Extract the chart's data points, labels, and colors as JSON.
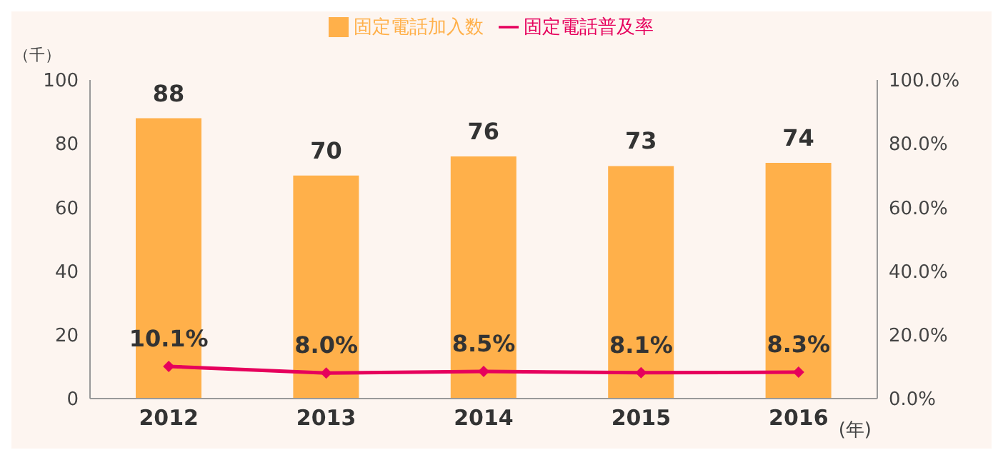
{
  "chart_data": {
    "type": "bar",
    "categories": [
      "2012",
      "2013",
      "2014",
      "2015",
      "2016"
    ],
    "xlabel": "(年)",
    "ylabel": "（千）",
    "ylim": [
      0,
      100
    ],
    "yticks": [
      0,
      20,
      40,
      60,
      80,
      100
    ],
    "y2lim": [
      0,
      100
    ],
    "y2ticks": [
      {
        "value": 0,
        "label": "0.0%"
      },
      {
        "value": 20,
        "label": "20.0%"
      },
      {
        "value": 40,
        "label": "40.0%"
      },
      {
        "value": 60,
        "label": "60.0%"
      },
      {
        "value": 80,
        "label": "80.0%"
      },
      {
        "value": 100,
        "label": "100.0%"
      }
    ],
    "series": [
      {
        "name": "固定電話加入数",
        "color": "#ffb04a",
        "values": [
          88,
          70,
          76,
          73,
          74
        ],
        "value_labels": [
          "88",
          "70",
          "76",
          "73",
          "74"
        ]
      },
      {
        "name": "固定電話普及率",
        "type": "line",
        "axis": "y2",
        "color": "#e6005c",
        "marker": "diamond",
        "values": [
          10.1,
          8.0,
          8.5,
          8.1,
          8.3
        ],
        "value_labels": [
          "10.1%",
          "8.0%",
          "8.5%",
          "8.1%",
          "8.3%"
        ]
      }
    ],
    "legend": "top"
  }
}
